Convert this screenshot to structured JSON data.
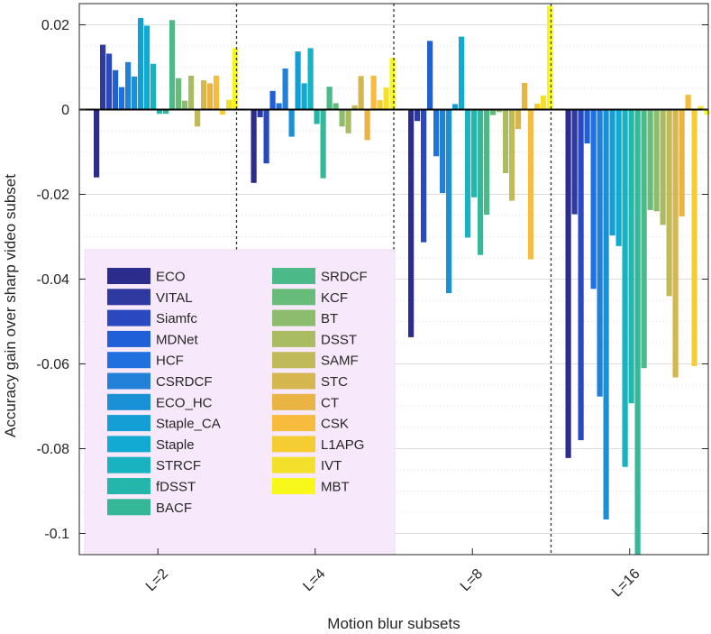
{
  "chart_data": {
    "type": "bar",
    "xlabel": "Motion blur subsets",
    "ylabel": "Accuracy gain over sharp video subset",
    "ylim": [
      -0.105,
      0.025
    ],
    "yticks": [
      0.02,
      0,
      -0.02,
      -0.04,
      -0.06,
      -0.08,
      -0.1
    ],
    "ytick_labels": [
      "0.02",
      "0",
      "-0.02",
      "-0.04",
      "-0.06",
      "-0.08",
      "-0.1"
    ],
    "grid": true,
    "legend_position": "bottom-left",
    "categories": [
      "L=2",
      "L=4",
      "L=8",
      "L=16"
    ],
    "series": [
      {
        "name": "ECO",
        "color": "#2c2c8c",
        "values": [
          -0.016,
          -0.0173,
          -0.0537,
          -0.0822
        ]
      },
      {
        "name": "VITAL",
        "color": "#2e3aa0",
        "values": [
          0.0153,
          -0.0018,
          -0.0027,
          -0.0247
        ]
      },
      {
        "name": "Siamfc",
        "color": "#2a48c0",
        "values": [
          0.0132,
          -0.0127,
          -0.0313,
          -0.078
        ]
      },
      {
        "name": "MDNet",
        "color": "#1f5fd8",
        "values": [
          0.0093,
          0.0044,
          0.0162,
          -0.008
        ]
      },
      {
        "name": "HCF",
        "color": "#2070e0",
        "values": [
          0.0053,
          0.0015,
          -0.011,
          -0.0423
        ]
      },
      {
        "name": "CSRDCF",
        "color": "#2280d8",
        "values": [
          0.0112,
          0.0097,
          -0.0197,
          -0.0677
        ]
      },
      {
        "name": "ECO_HC",
        "color": "#1a90d6",
        "values": [
          0.0078,
          -0.0064,
          -0.0433,
          -0.0967
        ]
      },
      {
        "name": "Staple_CA",
        "color": "#139fd6",
        "values": [
          0.0216,
          0.0137,
          0.0013,
          -0.0297
        ]
      },
      {
        "name": "Staple",
        "color": "#12aad0",
        "values": [
          0.0198,
          0.0062,
          0.0172,
          -0.0322
        ]
      },
      {
        "name": "STRCF",
        "color": "#18b2c0",
        "values": [
          0.0108,
          0.0145,
          -0.0302,
          -0.0843
        ]
      },
      {
        "name": "fDSST",
        "color": "#24b6aa",
        "values": [
          -0.001,
          -0.0034,
          -0.0207,
          -0.0693
        ]
      },
      {
        "name": "BACF",
        "color": "#35b897",
        "values": [
          -0.001,
          -0.0162,
          -0.0343,
          -0.105
        ]
      },
      {
        "name": "SRDCF",
        "color": "#4bba88",
        "values": [
          0.0211,
          0.0054,
          -0.0248,
          -0.061
        ]
      },
      {
        "name": "KCF",
        "color": "#68bc7a",
        "values": [
          0.0074,
          0.0015,
          -0.0013,
          -0.0237
        ]
      },
      {
        "name": "BT",
        "color": "#8cbc6c",
        "values": [
          0.0021,
          -0.004,
          -0.0006,
          -0.024
        ]
      },
      {
        "name": "DSST",
        "color": "#aabc62",
        "values": [
          0.008,
          -0.0056,
          -0.015,
          -0.0272
        ]
      },
      {
        "name": "SAMF",
        "color": "#c0ba58",
        "values": [
          -0.004,
          0.001,
          -0.0215,
          -0.044
        ]
      },
      {
        "name": "STC",
        "color": "#d6b64e",
        "values": [
          0.0069,
          0.0079,
          -0.0046,
          -0.0632
        ]
      },
      {
        "name": "CT",
        "color": "#eab445",
        "values": [
          0.0062,
          -0.0072,
          0.0063,
          -0.0252
        ]
      },
      {
        "name": "CSK",
        "color": "#f8bc3c",
        "values": [
          0.008,
          0.008,
          -0.0353,
          0.0035
        ]
      },
      {
        "name": "L1APG",
        "color": "#f5cc32",
        "values": [
          -0.0012,
          0.0022,
          0.0014,
          -0.0605
        ]
      },
      {
        "name": "IVT",
        "color": "#f2e02a",
        "values": [
          0.0023,
          0.0052,
          0.0033,
          0.0008
        ]
      },
      {
        "name": "MBT",
        "color": "#f7f71a",
        "values": [
          0.0145,
          0.0122,
          0.0245,
          -0.0012
        ]
      }
    ]
  }
}
